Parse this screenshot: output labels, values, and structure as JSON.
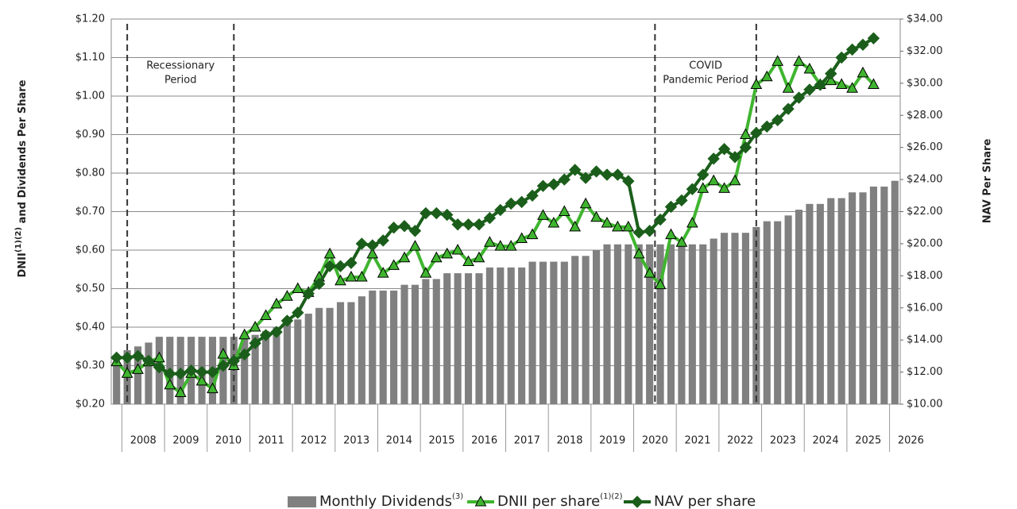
{
  "chart_data": {
    "type": "combo",
    "y_label": {
      "main": "DNII",
      "sup": "(1)(2)",
      "rest": " and Dividends Per Share"
    },
    "y2_label": "NAV Per Share",
    "xlim": [
      2007.75,
      2026.25
    ],
    "xticks": [
      2008,
      2009,
      2010,
      2011,
      2012,
      2013,
      2014,
      2015,
      2016,
      2017,
      2018,
      2019,
      2020,
      2021,
      2022,
      2023,
      2024,
      2025,
      2026
    ],
    "ylim": [
      0.2,
      1.2
    ],
    "yticks": [
      {
        "value": 0.2,
        "label": "$0.20"
      },
      {
        "value": 0.3,
        "label": "$0.30"
      },
      {
        "value": 0.4,
        "label": "$0.40"
      },
      {
        "value": 0.5,
        "label": "$0.50"
      },
      {
        "value": 0.6,
        "label": "$0.60"
      },
      {
        "value": 0.7,
        "label": "$0.70"
      },
      {
        "value": 0.8,
        "label": "$0.80"
      },
      {
        "value": 0.9,
        "label": "$0.90"
      },
      {
        "value": 1.0,
        "label": "$1.00"
      },
      {
        "value": 1.1,
        "label": "$1.10"
      },
      {
        "value": 1.2,
        "label": "$1.20"
      }
    ],
    "y2lim": [
      10,
      34
    ],
    "y2ticks": [
      {
        "value": 10,
        "label": "$10.00"
      },
      {
        "value": 12,
        "label": "$12.00"
      },
      {
        "value": 14,
        "label": "$14.00"
      },
      {
        "value": 16,
        "label": "$16.00"
      },
      {
        "value": 18,
        "label": "$18.00"
      },
      {
        "value": 20,
        "label": "$20.00"
      },
      {
        "value": 22,
        "label": "$22.00"
      },
      {
        "value": 24,
        "label": "$24.00"
      },
      {
        "value": 26,
        "label": "$26.00"
      },
      {
        "value": 28,
        "label": "$28.00"
      },
      {
        "value": 30,
        "label": "$30.00"
      },
      {
        "value": 32,
        "label": "$32.00"
      },
      {
        "value": 34,
        "label": "$34.00"
      }
    ],
    "grid": true,
    "legend": "bottom",
    "annotations": [
      {
        "lines": [
          "Recessionary",
          "Period"
        ],
        "x_start": 2008.125,
        "x_end": 2010.625
      },
      {
        "lines": [
          "COVID",
          "Pandemic Period"
        ],
        "x_start": 2020.5,
        "x_end": 2022.875
      }
    ],
    "series": [
      {
        "name": "Monthly Dividends",
        "note": "(3)",
        "type": "bar",
        "color": "#808080",
        "x": [
          2007.875,
          2008.125,
          2008.375,
          2008.625,
          2008.875,
          2009.125,
          2009.375,
          2009.625,
          2009.875,
          2010.125,
          2010.375,
          2010.625,
          2010.875,
          2011.125,
          2011.375,
          2011.625,
          2011.875,
          2012.125,
          2012.375,
          2012.625,
          2012.875,
          2013.125,
          2013.375,
          2013.625,
          2013.875,
          2014.125,
          2014.375,
          2014.625,
          2014.875,
          2015.125,
          2015.375,
          2015.625,
          2015.875,
          2016.125,
          2016.375,
          2016.625,
          2016.875,
          2017.125,
          2017.375,
          2017.625,
          2017.875,
          2018.125,
          2018.375,
          2018.625,
          2018.875,
          2019.125,
          2019.375,
          2019.625,
          2019.875,
          2020.125,
          2020.375,
          2020.625,
          2020.875,
          2021.125,
          2021.375,
          2021.625,
          2021.875,
          2022.125,
          2022.375,
          2022.625,
          2022.875,
          2023.125,
          2023.375,
          2023.625,
          2023.875,
          2024.125,
          2024.375,
          2024.625,
          2024.875,
          2025.125,
          2025.375,
          2025.625,
          2025.875,
          2026.125
        ],
        "values": [
          0.3,
          0.34,
          0.35,
          0.36,
          0.375,
          0.375,
          0.375,
          0.375,
          0.375,
          0.375,
          0.375,
          0.375,
          0.375,
          0.38,
          0.39,
          0.4,
          0.41,
          0.42,
          0.435,
          0.45,
          0.45,
          0.465,
          0.465,
          0.48,
          0.495,
          0.495,
          0.495,
          0.51,
          0.51,
          0.525,
          0.525,
          0.54,
          0.54,
          0.54,
          0.54,
          0.555,
          0.555,
          0.555,
          0.555,
          0.57,
          0.57,
          0.57,
          0.57,
          0.585,
          0.585,
          0.6,
          0.615,
          0.615,
          0.615,
          0.615,
          0.615,
          0.615,
          0.615,
          0.615,
          0.615,
          0.615,
          0.63,
          0.645,
          0.645,
          0.645,
          0.66,
          0.675,
          0.675,
          0.69,
          0.705,
          0.72,
          0.72,
          0.735,
          0.735,
          0.75,
          0.75,
          0.765,
          0.765,
          0.78
        ]
      },
      {
        "name": "DNII per share",
        "note": "(1)(2)",
        "type": "line",
        "marker": "triangle",
        "color": "#3fb52f",
        "x": [
          2007.875,
          2008.125,
          2008.375,
          2008.625,
          2008.875,
          2009.125,
          2009.375,
          2009.625,
          2009.875,
          2010.125,
          2010.375,
          2010.625,
          2010.875,
          2011.125,
          2011.375,
          2011.625,
          2011.875,
          2012.125,
          2012.375,
          2012.625,
          2012.875,
          2013.125,
          2013.375,
          2013.625,
          2013.875,
          2014.125,
          2014.375,
          2014.625,
          2014.875,
          2015.125,
          2015.375,
          2015.625,
          2015.875,
          2016.125,
          2016.375,
          2016.625,
          2016.875,
          2017.125,
          2017.375,
          2017.625,
          2017.875,
          2018.125,
          2018.375,
          2018.625,
          2018.875,
          2019.125,
          2019.375,
          2019.625,
          2019.875,
          2020.125,
          2020.375,
          2020.625,
          2020.875,
          2021.125,
          2021.375,
          2021.625,
          2021.875,
          2022.125,
          2022.375,
          2022.625,
          2022.875,
          2023.125,
          2023.375,
          2023.625,
          2023.875,
          2024.125,
          2024.375,
          2024.625,
          2024.875,
          2025.125,
          2025.375,
          2025.625
        ],
        "values": [
          0.31,
          0.28,
          0.29,
          0.31,
          0.32,
          0.25,
          0.23,
          0.28,
          0.26,
          0.24,
          0.33,
          0.3,
          0.38,
          0.4,
          0.43,
          0.46,
          0.48,
          0.5,
          0.49,
          0.53,
          0.59,
          0.52,
          0.53,
          0.53,
          0.59,
          0.54,
          0.56,
          0.58,
          0.61,
          0.54,
          0.58,
          0.59,
          0.6,
          0.57,
          0.58,
          0.62,
          0.61,
          0.61,
          0.63,
          0.64,
          0.69,
          0.67,
          0.7,
          0.66,
          0.72,
          0.685,
          0.67,
          0.66,
          0.66,
          0.59,
          0.54,
          0.51,
          0.64,
          0.62,
          0.67,
          0.76,
          0.78,
          0.76,
          0.78,
          0.9,
          1.03,
          1.05,
          1.09,
          1.02,
          1.09,
          1.07,
          1.03,
          1.04,
          1.03,
          1.02,
          1.06,
          1.03
        ]
      },
      {
        "name": "NAV per share",
        "type": "line",
        "marker": "diamond",
        "axis": "y2",
        "color": "#1b5e1b",
        "x": [
          2007.875,
          2008.125,
          2008.375,
          2008.625,
          2008.875,
          2009.125,
          2009.375,
          2009.625,
          2009.875,
          2010.125,
          2010.375,
          2010.625,
          2010.875,
          2011.125,
          2011.375,
          2011.625,
          2011.875,
          2012.125,
          2012.375,
          2012.625,
          2012.875,
          2013.125,
          2013.375,
          2013.625,
          2013.875,
          2014.125,
          2014.375,
          2014.625,
          2014.875,
          2015.125,
          2015.375,
          2015.625,
          2015.875,
          2016.125,
          2016.375,
          2016.625,
          2016.875,
          2017.125,
          2017.375,
          2017.625,
          2017.875,
          2018.125,
          2018.375,
          2018.625,
          2018.875,
          2019.125,
          2019.375,
          2019.625,
          2019.875,
          2020.125,
          2020.375,
          2020.625,
          2020.875,
          2021.125,
          2021.375,
          2021.625,
          2021.875,
          2022.125,
          2022.375,
          2022.625,
          2022.875,
          2023.125,
          2023.375,
          2023.625,
          2023.875,
          2024.125,
          2024.375,
          2024.625,
          2024.875,
          2025.125,
          2025.375,
          2025.625
        ],
        "values": [
          12.9,
          12.9,
          13.0,
          12.7,
          12.3,
          11.9,
          11.9,
          12.1,
          12.0,
          12.0,
          12.4,
          12.7,
          13.1,
          13.8,
          14.3,
          14.5,
          15.2,
          15.7,
          16.9,
          17.5,
          18.6,
          18.6,
          18.8,
          20.0,
          19.9,
          20.2,
          21.0,
          21.1,
          20.8,
          21.9,
          21.9,
          21.8,
          21.2,
          21.2,
          21.2,
          21.6,
          22.1,
          22.5,
          22.6,
          23.0,
          23.6,
          23.7,
          24.0,
          24.6,
          24.1,
          24.5,
          24.3,
          24.3,
          23.9,
          20.7,
          20.8,
          21.5,
          22.3,
          22.7,
          23.4,
          24.3,
          25.3,
          25.9,
          25.4,
          26.0,
          26.9,
          27.3,
          27.7,
          28.4,
          29.1,
          29.6,
          29.9,
          30.6,
          31.6,
          32.1,
          32.4,
          32.8
        ]
      }
    ]
  }
}
